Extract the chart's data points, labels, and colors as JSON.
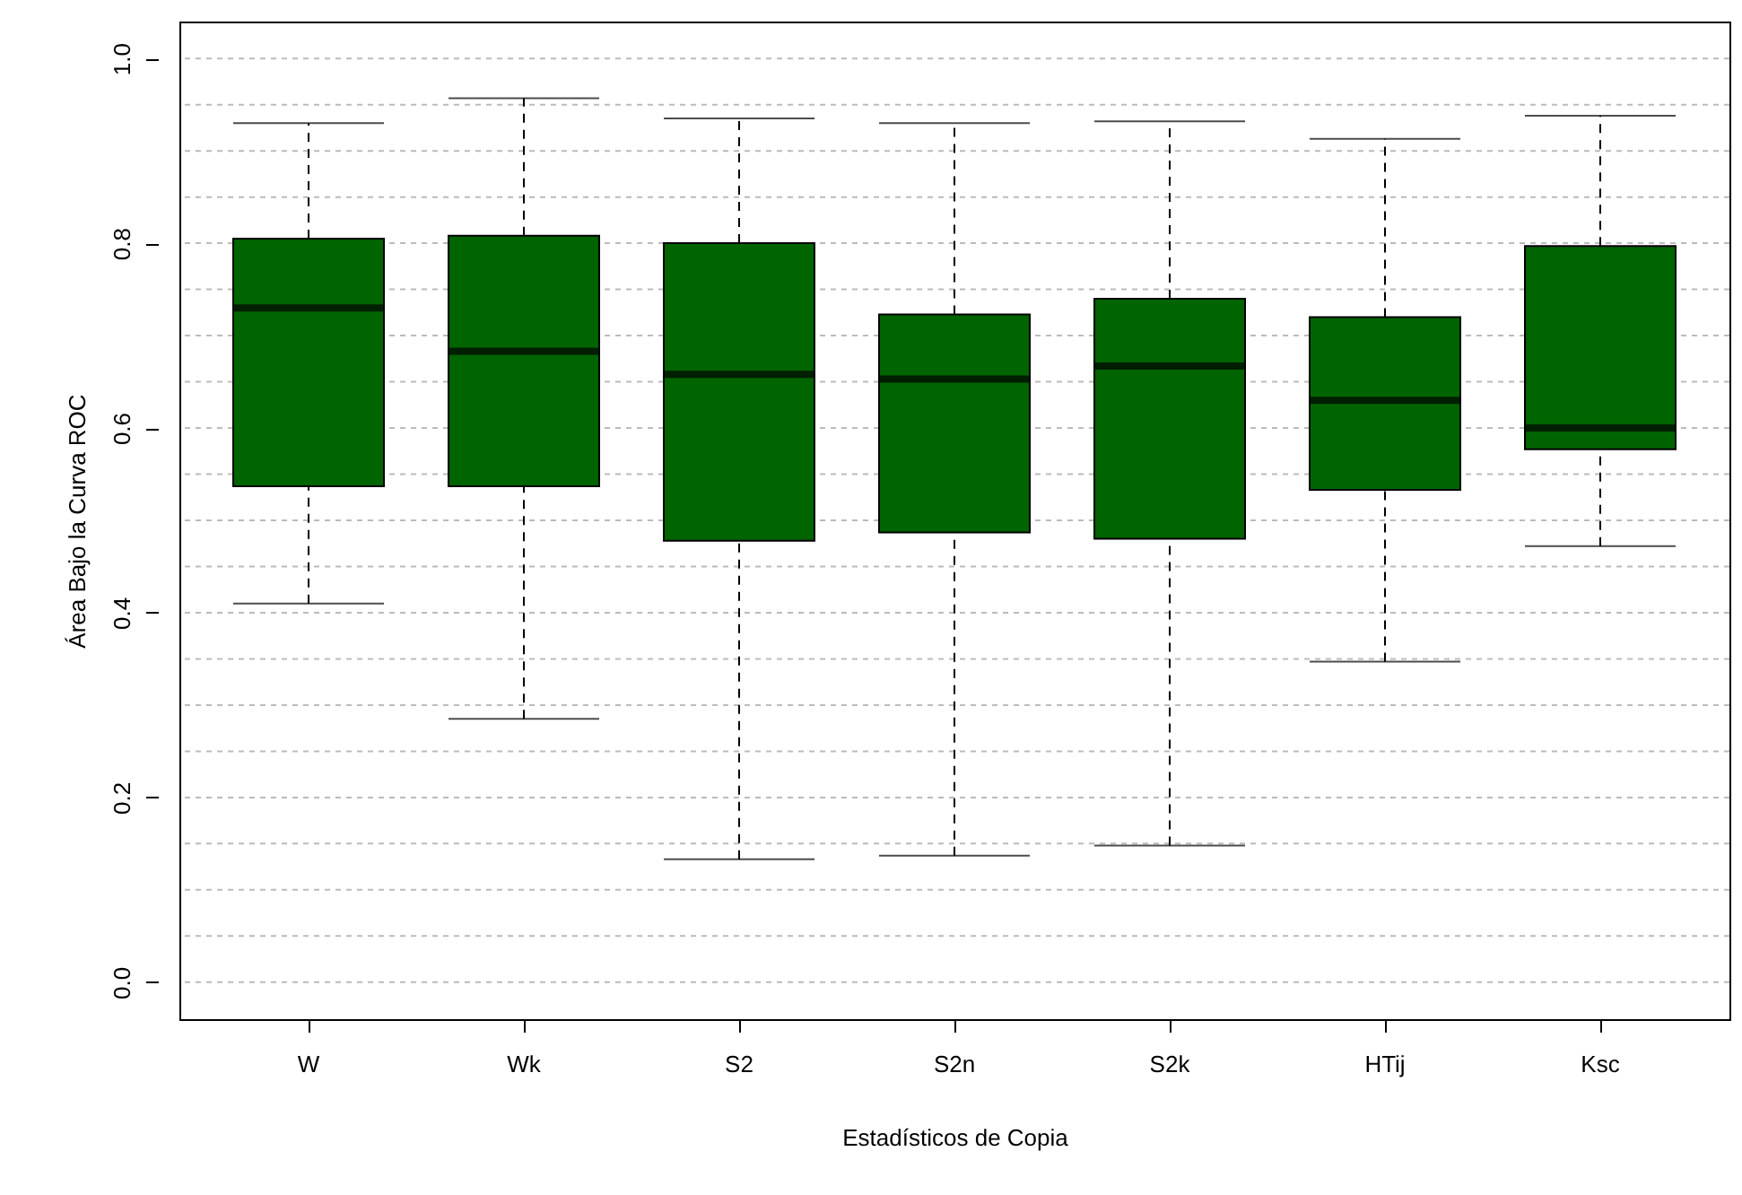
{
  "chart_data": {
    "type": "box",
    "xlabel": "Estadísticos de Copia",
    "ylabel": "Área Bajo la Curva ROC",
    "categories": [
      "W",
      "Wk",
      "S2",
      "S2n",
      "S2k",
      "HTij",
      "Ksc"
    ],
    "series": [
      {
        "color": "#006400",
        "boxes": [
          {
            "low": 0.41,
            "q1": 0.537,
            "median": 0.73,
            "q3": 0.805,
            "high": 0.93
          },
          {
            "low": 0.285,
            "q1": 0.537,
            "median": 0.683,
            "q3": 0.808,
            "high": 0.957
          },
          {
            "low": 0.133,
            "q1": 0.478,
            "median": 0.658,
            "q3": 0.8,
            "high": 0.935
          },
          {
            "low": 0.137,
            "q1": 0.487,
            "median": 0.653,
            "q3": 0.723,
            "high": 0.93
          },
          {
            "low": 0.148,
            "q1": 0.48,
            "median": 0.667,
            "q3": 0.74,
            "high": 0.932
          },
          {
            "low": 0.347,
            "q1": 0.533,
            "median": 0.63,
            "q3": 0.72,
            "high": 0.913
          },
          {
            "low": 0.472,
            "q1": 0.577,
            "median": 0.6,
            "q3": 0.797,
            "high": 0.938
          }
        ]
      }
    ],
    "ylim": [
      -0.04,
      1.04
    ],
    "yticks": [
      {
        "value": 0.0,
        "label": "0.0"
      },
      {
        "value": 0.05,
        "label": null
      },
      {
        "value": 0.1,
        "label": null
      },
      {
        "value": 0.15,
        "label": null
      },
      {
        "value": 0.2,
        "label": "0.2"
      },
      {
        "value": 0.25,
        "label": null
      },
      {
        "value": 0.3,
        "label": null
      },
      {
        "value": 0.35,
        "label": null
      },
      {
        "value": 0.4,
        "label": "0.4"
      },
      {
        "value": 0.45,
        "label": null
      },
      {
        "value": 0.5,
        "label": null
      },
      {
        "value": 0.55,
        "label": null
      },
      {
        "value": 0.6,
        "label": "0.6"
      },
      {
        "value": 0.65,
        "label": null
      },
      {
        "value": 0.7,
        "label": null
      },
      {
        "value": 0.75,
        "label": null
      },
      {
        "value": 0.8,
        "label": "0.8"
      },
      {
        "value": 0.85,
        "label": null
      },
      {
        "value": 0.9,
        "label": null
      },
      {
        "value": 0.95,
        "label": null
      },
      {
        "value": 1.0,
        "label": "1.0"
      }
    ],
    "grid": "y"
  }
}
